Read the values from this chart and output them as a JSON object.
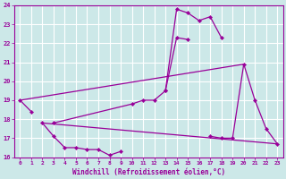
{
  "xlabel": "Windchill (Refroidissement éolien,°C)",
  "bg_color": "#cce8e8",
  "line_color": "#990099",
  "grid_color": "#ffffff",
  "xlim": [
    -0.5,
    23.5
  ],
  "ylim": [
    16,
    24
  ],
  "xticks": [
    0,
    1,
    2,
    3,
    4,
    5,
    6,
    7,
    8,
    9,
    10,
    11,
    12,
    13,
    14,
    15,
    16,
    17,
    18,
    19,
    20,
    21,
    22,
    23
  ],
  "yticks": [
    16,
    17,
    18,
    19,
    20,
    21,
    22,
    23,
    24
  ],
  "segments_with_markers": [
    {
      "x": [
        0,
        1
      ],
      "y": [
        19.0,
        18.4
      ]
    },
    {
      "x": [
        2,
        3,
        4,
        5,
        6,
        7,
        8,
        9
      ],
      "y": [
        17.8,
        17.1,
        16.5,
        16.5,
        16.4,
        16.4,
        16.1,
        16.3
      ]
    },
    {
      "x": [
        3,
        10,
        11,
        12,
        13,
        14,
        15
      ],
      "y": [
        17.8,
        18.8,
        19.0,
        19.0,
        19.5,
        22.3,
        22.2
      ]
    },
    {
      "x": [
        13,
        14,
        15,
        16,
        17,
        18
      ],
      "y": [
        19.5,
        23.8,
        23.6,
        23.2,
        23.4,
        22.3
      ]
    },
    {
      "x": [
        17,
        18,
        19,
        20,
        21,
        22,
        23
      ],
      "y": [
        17.1,
        17.0,
        17.0,
        20.9,
        19.0,
        17.5,
        16.7
      ]
    }
  ],
  "straight_lines": [
    {
      "x": [
        0,
        20
      ],
      "y": [
        19.0,
        20.9
      ]
    },
    {
      "x": [
        2,
        23
      ],
      "y": [
        17.8,
        16.7
      ]
    }
  ]
}
